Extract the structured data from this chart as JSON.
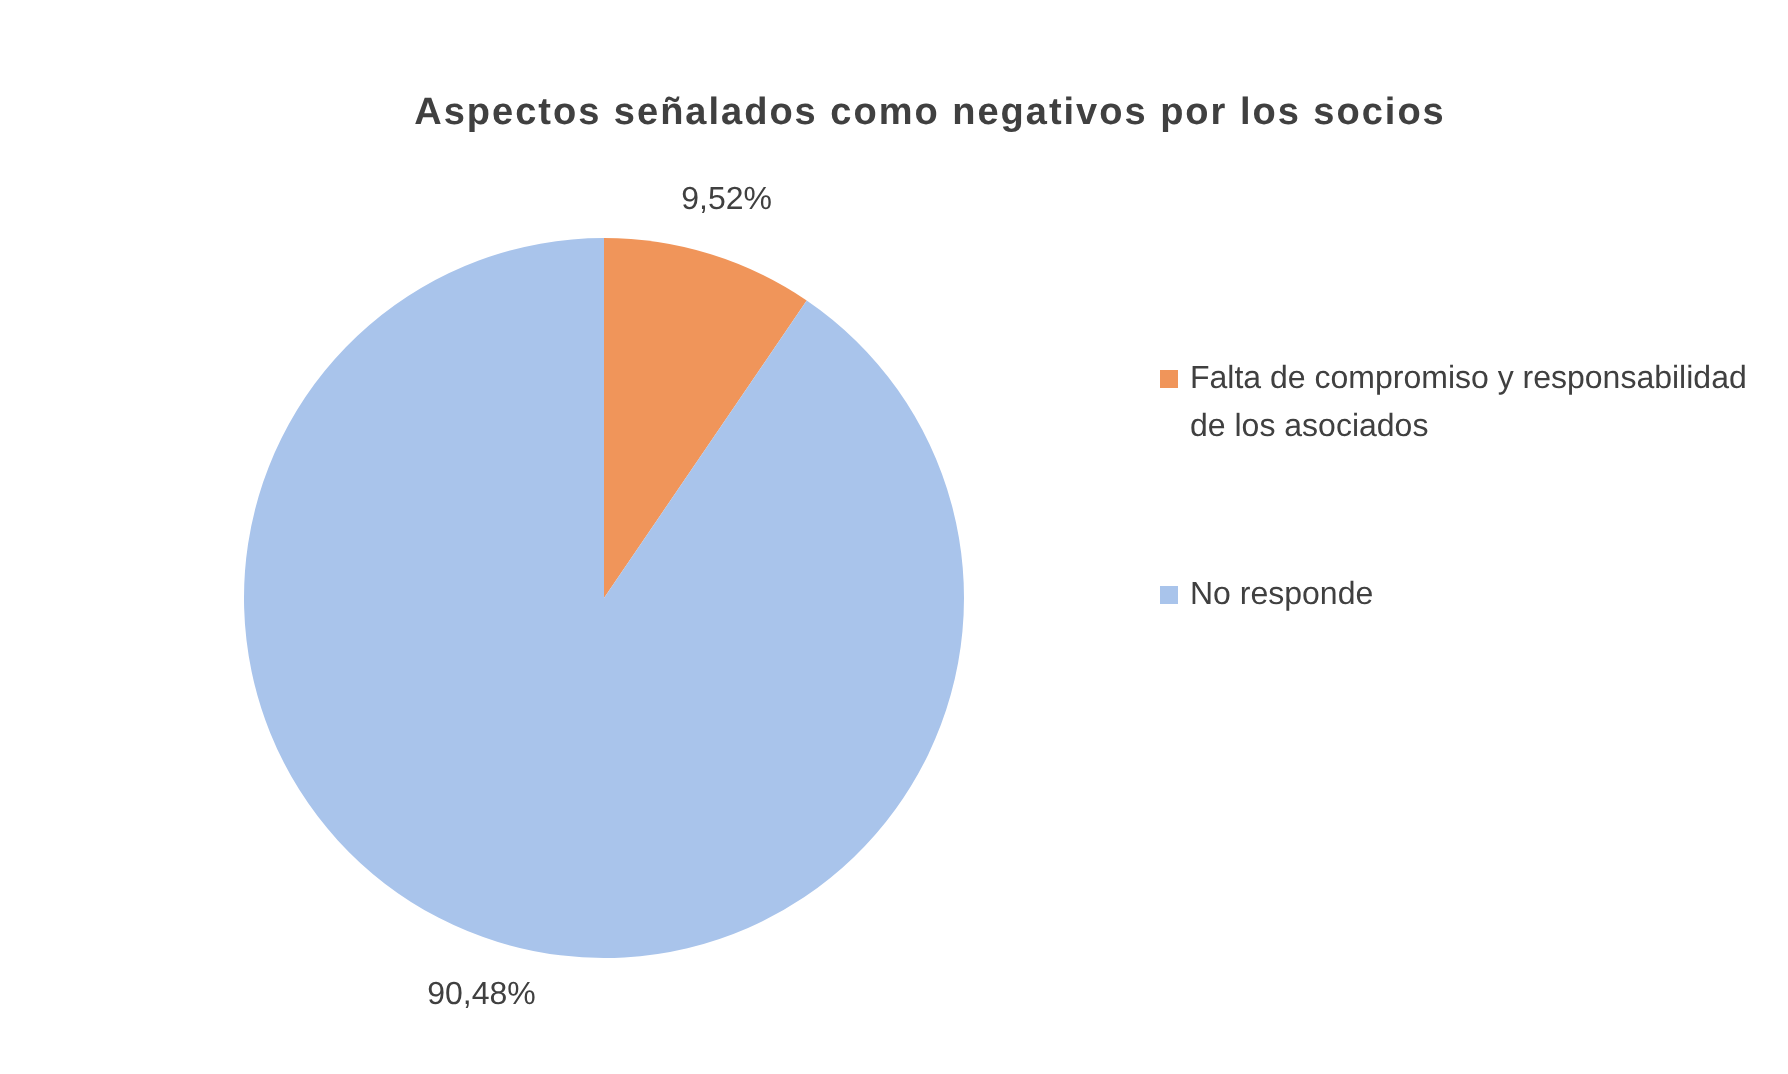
{
  "chart_data": {
    "type": "pie",
    "title": "Aspectos señalados como negativos por los socios",
    "categories": [
      "Falta de compromiso y responsabilidad de los asociados",
      "No responde"
    ],
    "values": [
      9.52,
      90.48
    ],
    "colors": [
      "#f0955a",
      "#a9c4eb"
    ],
    "value_labels": [
      "9,52%",
      "90,48%"
    ],
    "legend": "right"
  }
}
